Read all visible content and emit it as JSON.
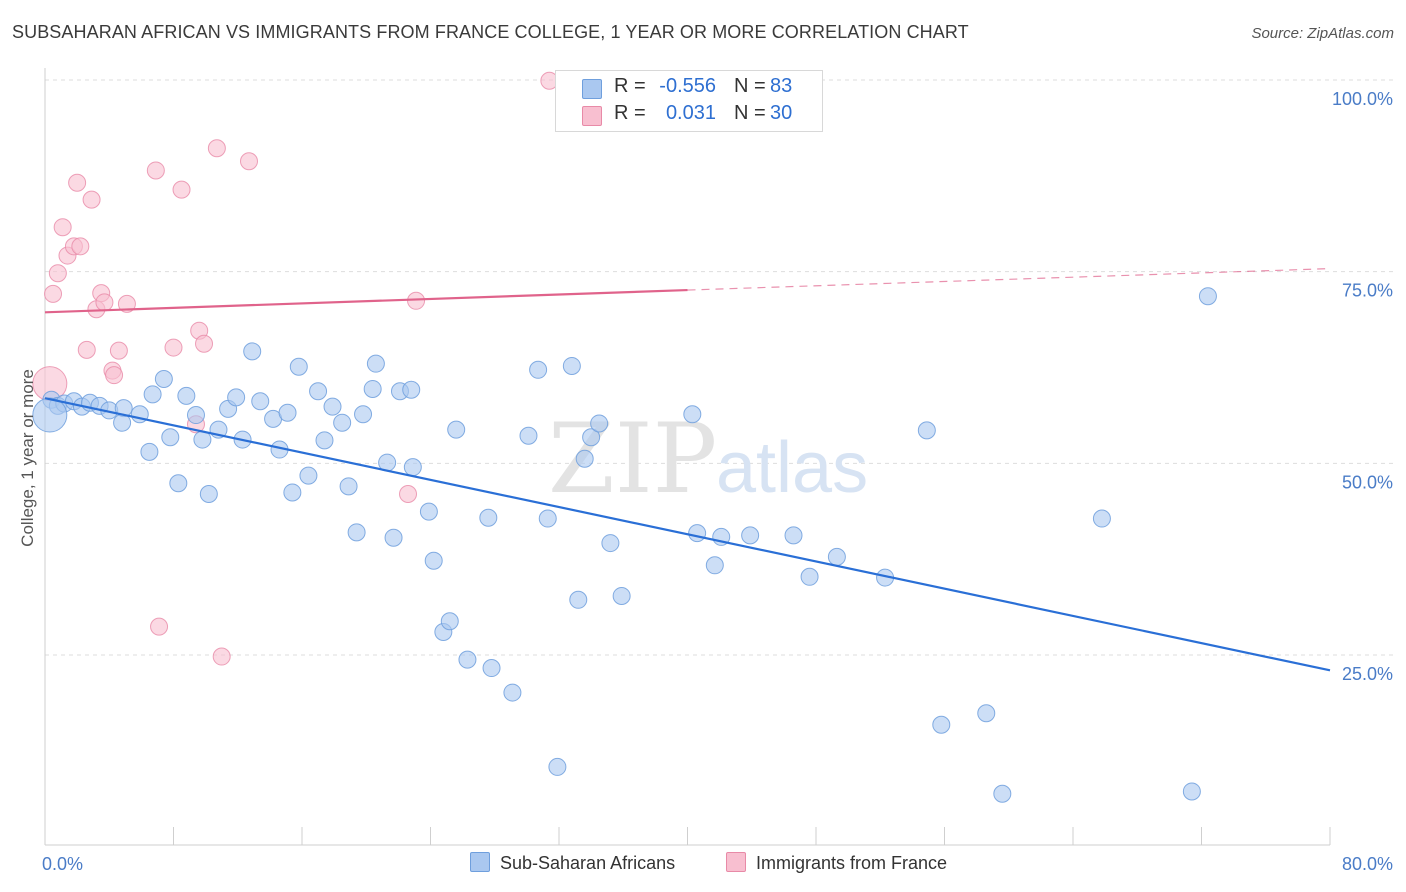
{
  "title": "SUBSAHARAN AFRICAN VS IMMIGRANTS FROM FRANCE COLLEGE, 1 YEAR OR MORE CORRELATION CHART",
  "source": "Source: ZipAtlas.com",
  "watermark": {
    "zip": "ZIP",
    "atlas": "atlas"
  },
  "colors": {
    "blue_fill": "#aac8f0",
    "blue_stroke": "#6f9fdd",
    "blue_line": "#2a6fd6",
    "pink_fill": "#f8bfd0",
    "pink_stroke": "#e88aa7",
    "pink_line": "#e0638b",
    "tick_text": "#4a7cc7",
    "grid": "#dddddd"
  },
  "legend": {
    "rows": [
      {
        "r_label": "R =",
        "r_value": "-0.556",
        "n_label": "N =",
        "n_value": "83",
        "color": "#aac8f0"
      },
      {
        "r_label": "R =",
        "r_value": "0.031",
        "n_label": "N =",
        "n_value": "30",
        "color": "#f8bfd0"
      }
    ]
  },
  "bottom_legend": [
    {
      "label": "Sub-Saharan Africans",
      "color": "#aac8f0"
    },
    {
      "label": "Immigrants from France",
      "color": "#f8bfd0"
    }
  ],
  "chart_data": {
    "type": "scatter",
    "title": "SUBSAHARAN AFRICAN VS IMMIGRANTS FROM FRANCE COLLEGE, 1 YEAR OR MORE CORRELATION CHART",
    "xlabel": "",
    "ylabel": "College, 1 year or more",
    "xlim": [
      0,
      80
    ],
    "ylim": [
      0,
      102
    ],
    "x_tick_labels": [
      "0.0%",
      "80.0%"
    ],
    "y_ticks": [
      25,
      50,
      75,
      100
    ],
    "y_tick_labels": [
      "25.0%",
      "50.0%",
      "75.0%",
      "100.0%"
    ],
    "grid": true,
    "legend_position": "top-center",
    "series": [
      {
        "name": "Sub-Saharan Africans",
        "color": "#aac8f0",
        "points": [
          [
            0.4,
            58.3
          ],
          [
            0.8,
            57.5
          ],
          [
            1.2,
            57.8
          ],
          [
            1.8,
            58.1
          ],
          [
            2.3,
            57.4
          ],
          [
            2.8,
            57.9
          ],
          [
            3.4,
            57.5
          ],
          [
            4.0,
            56.9
          ],
          [
            4.9,
            57.2
          ],
          [
            4.8,
            55.3
          ],
          [
            5.9,
            56.4
          ],
          [
            6.5,
            51.5
          ],
          [
            6.7,
            59.0
          ],
          [
            7.4,
            61.0
          ],
          [
            7.8,
            53.4
          ],
          [
            8.3,
            47.4
          ],
          [
            8.8,
            58.8
          ],
          [
            9.4,
            56.3
          ],
          [
            9.8,
            53.1
          ],
          [
            10.2,
            46.0
          ],
          [
            10.8,
            54.4
          ],
          [
            11.4,
            57.1
          ],
          [
            11.9,
            58.6
          ],
          [
            12.3,
            53.1
          ],
          [
            12.9,
            64.6
          ],
          [
            13.4,
            58.1
          ],
          [
            14.2,
            55.8
          ],
          [
            14.6,
            51.8
          ],
          [
            15.1,
            56.6
          ],
          [
            15.4,
            46.2
          ],
          [
            15.8,
            62.6
          ],
          [
            16.4,
            48.4
          ],
          [
            17.0,
            59.4
          ],
          [
            17.4,
            53.0
          ],
          [
            17.9,
            57.4
          ],
          [
            18.5,
            55.3
          ],
          [
            18.9,
            47.0
          ],
          [
            19.4,
            41.0
          ],
          [
            19.8,
            56.4
          ],
          [
            20.4,
            59.7
          ],
          [
            20.6,
            63.0
          ],
          [
            21.3,
            50.1
          ],
          [
            21.7,
            40.3
          ],
          [
            22.1,
            59.4
          ],
          [
            22.8,
            59.6
          ],
          [
            22.9,
            49.5
          ],
          [
            23.9,
            43.7
          ],
          [
            24.2,
            37.3
          ],
          [
            24.8,
            28.0
          ],
          [
            25.2,
            29.4
          ],
          [
            25.6,
            54.4
          ],
          [
            26.3,
            24.4
          ],
          [
            27.6,
            42.9
          ],
          [
            27.8,
            23.3
          ],
          [
            29.1,
            20.1
          ],
          [
            30.1,
            53.6
          ],
          [
            30.7,
            62.2
          ],
          [
            31.3,
            42.8
          ],
          [
            31.9,
            10.4
          ],
          [
            32.8,
            62.7
          ],
          [
            33.2,
            32.2
          ],
          [
            33.6,
            50.6
          ],
          [
            34.0,
            53.4
          ],
          [
            34.5,
            55.2
          ],
          [
            35.2,
            39.6
          ],
          [
            35.9,
            32.7
          ],
          [
            40.3,
            56.4
          ],
          [
            40.6,
            40.9
          ],
          [
            41.7,
            36.7
          ],
          [
            42.1,
            40.4
          ],
          [
            43.9,
            40.6
          ],
          [
            46.6,
            40.6
          ],
          [
            47.6,
            35.2
          ],
          [
            49.3,
            37.8
          ],
          [
            52.3,
            35.1
          ],
          [
            54.9,
            54.3
          ],
          [
            55.8,
            15.9
          ],
          [
            58.6,
            17.4
          ],
          [
            59.6,
            6.9
          ],
          [
            65.8,
            42.8
          ],
          [
            71.4,
            7.2
          ],
          [
            72.4,
            71.8
          ],
          [
            0.3,
            56.3
          ]
        ],
        "trend": {
          "x": [
            0,
            80
          ],
          "y": [
            58.5,
            23.0
          ]
        }
      },
      {
        "name": "Immigrants from France",
        "color": "#f8bfd0",
        "points": [
          [
            0.3,
            60.4
          ],
          [
            0.5,
            72.1
          ],
          [
            0.8,
            74.8
          ],
          [
            1.1,
            80.8
          ],
          [
            1.4,
            77.1
          ],
          [
            1.8,
            78.3
          ],
          [
            2.0,
            86.6
          ],
          [
            2.2,
            78.3
          ],
          [
            2.6,
            64.8
          ],
          [
            2.9,
            84.4
          ],
          [
            3.2,
            70.1
          ],
          [
            3.5,
            72.2
          ],
          [
            3.7,
            71.0
          ],
          [
            4.2,
            62.1
          ],
          [
            4.3,
            61.5
          ],
          [
            4.6,
            64.7
          ],
          [
            5.1,
            70.8
          ],
          [
            6.9,
            88.2
          ],
          [
            8.0,
            65.1
          ],
          [
            8.5,
            85.7
          ],
          [
            9.4,
            55.1
          ],
          [
            9.6,
            67.3
          ],
          [
            9.9,
            65.6
          ],
          [
            10.7,
            91.1
          ],
          [
            11.0,
            24.8
          ],
          [
            12.7,
            89.4
          ],
          [
            7.1,
            28.7
          ],
          [
            22.6,
            46.0
          ],
          [
            23.1,
            71.2
          ],
          [
            31.4,
            99.9
          ]
        ],
        "trend_solid": {
          "x": [
            0,
            40
          ],
          "y": [
            69.7,
            72.6
          ]
        },
        "trend_dashed": {
          "x": [
            40,
            80
          ],
          "y": [
            72.6,
            75.4
          ]
        }
      }
    ]
  }
}
